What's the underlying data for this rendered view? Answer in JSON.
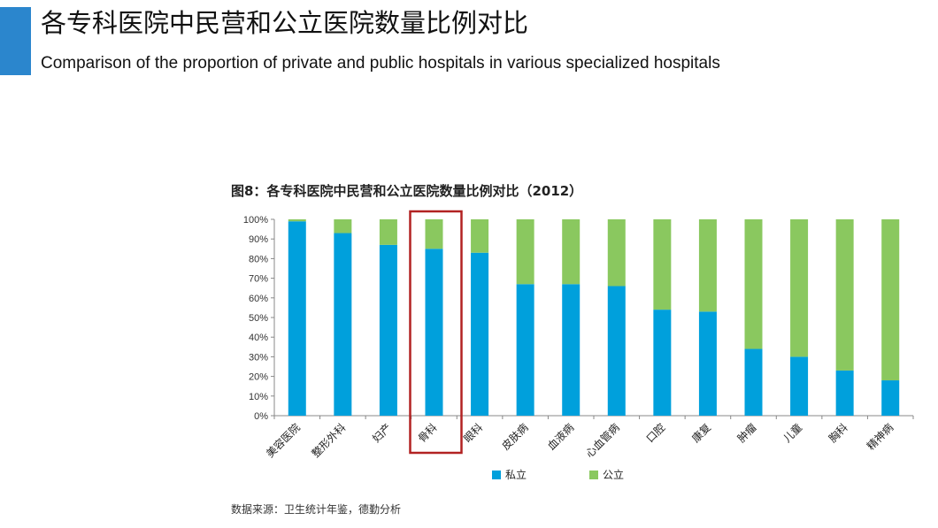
{
  "header": {
    "title_zh": "各专科医院中民营和公立医院数量比例对比",
    "title_en": "Comparison of the proportion of private and public hospitals in various specialized hospitals"
  },
  "source": "数据来源：卫生统计年鉴，德勤分析",
  "colors": {
    "accent": "#2b86cd",
    "private": "#00a0dc",
    "public": "#8ac85f",
    "highlight": "#b22222"
  },
  "chart_data": {
    "type": "bar",
    "stacked": true,
    "title": "图8：各专科医院中民营和公立医院数量比例对比（2012）",
    "categories": [
      "美容医院",
      "整形外科",
      "妇产",
      "骨科",
      "眼科",
      "皮肤病",
      "血液病",
      "心血管病",
      "口腔",
      "康复",
      "肿瘤",
      "儿童",
      "胸科",
      "精神病"
    ],
    "series": [
      {
        "name": "私立",
        "values": [
          99,
          93,
          87,
          85,
          83,
          67,
          67,
          66,
          54,
          53,
          34,
          30,
          23,
          18
        ]
      },
      {
        "name": "公立",
        "values": [
          1,
          7,
          13,
          15,
          17,
          33,
          33,
          34,
          46,
          47,
          66,
          70,
          77,
          82
        ]
      }
    ],
    "ylim": [
      0,
      100
    ],
    "yticks": [
      "0%",
      "10%",
      "20%",
      "30%",
      "40%",
      "50%",
      "60%",
      "70%",
      "80%",
      "90%",
      "100%"
    ],
    "highlighted_category": "骨科",
    "legend_position": "bottom"
  }
}
